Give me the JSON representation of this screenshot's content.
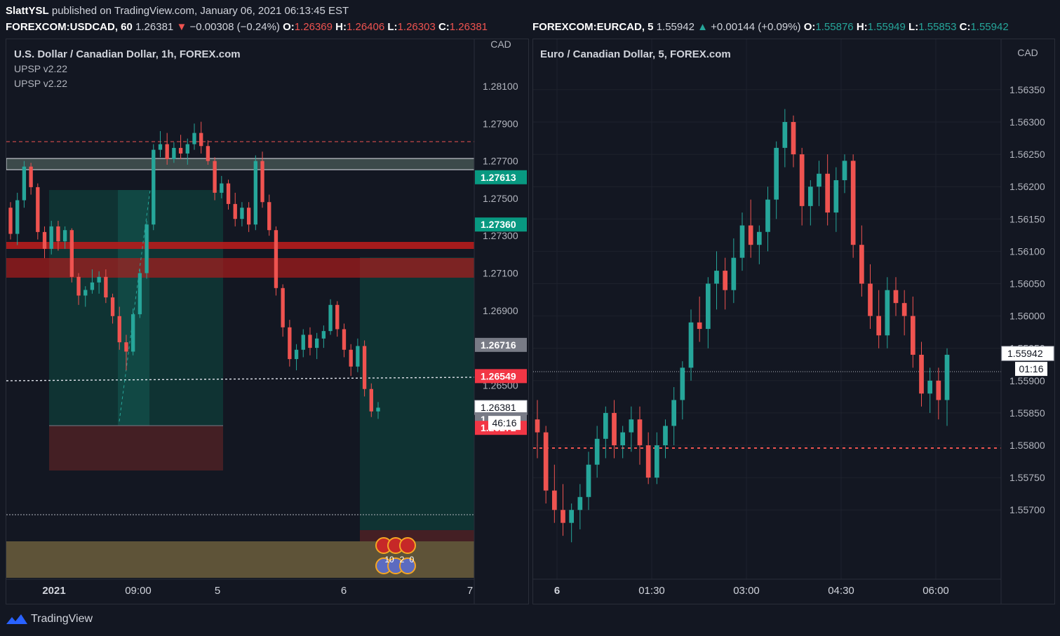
{
  "header": {
    "author": "SlattYSL",
    "published_text": "published on TradingView.com, January 06, 2021 06:13:45 EST"
  },
  "left_legend": {
    "symbol": "FOREXCOM:USDCAD, 60",
    "last": "1.26381",
    "arrow": "▼",
    "change": "−0.00308 (−0.24%)",
    "o_label": "O:",
    "o": "1.26369",
    "h_label": "H:",
    "h": "1.26406",
    "l_label": "L:",
    "l": "1.26303",
    "c_label": "C:",
    "c": "1.26381"
  },
  "right_legend": {
    "symbol": "FOREXCOM:EURCAD, 5",
    "last": "1.55942",
    "arrow": "▲",
    "change": "+0.00144 (+0.09%)",
    "o_label": "O:",
    "o": "1.55876",
    "h_label": "H:",
    "h": "1.55949",
    "l_label": "L:",
    "l": "1.55853",
    "c_label": "C:",
    "c": "1.55942"
  },
  "footer": {
    "brand": "TradingView",
    "icon": "tradingview-logo-icon"
  },
  "colors": {
    "up": "#26a69a",
    "down": "#ef5350",
    "bg": "#131722",
    "grid": "#1e222d",
    "text": "#d1d4dc"
  },
  "chart_data": [
    {
      "type": "candlestick",
      "title": "U.S. Dollar / Canadian Dollar, 1h, FOREX.com",
      "indicators": [
        "UPSP v2.22",
        "UPSP v2.22"
      ],
      "currency": "CAD",
      "x_ticks": [
        "2021",
        "09:00",
        "5",
        "6",
        "7"
      ],
      "y_ticks": [
        1.281,
        1.279,
        1.277,
        1.275,
        1.273,
        1.271,
        1.269,
        1.267,
        1.265
      ],
      "ylim": [
        1.2595,
        1.2822
      ],
      "grid": false,
      "price_labels": [
        {
          "price": 1.27613,
          "text": "1.27613",
          "color": "#089981"
        },
        {
          "price": 1.2736,
          "text": "1.27360",
          "color": "#089981"
        },
        {
          "price": 1.26716,
          "text": "1.26716",
          "color": "#787b86"
        },
        {
          "price": 1.26549,
          "text": "1.26549",
          "color": "#f23645"
        },
        {
          "price": 1.26381,
          "text": "1.26381",
          "color": "#ffffff"
        },
        {
          "price": 1.26318,
          "text": "1.26318",
          "color": "#787b86"
        },
        {
          "price": 1.26272,
          "text": "1.26272",
          "color": "#f23645"
        }
      ],
      "countdown": "46:16",
      "event_badges": [
        "10",
        "2",
        "0"
      ],
      "candles": [
        [
          1.2745,
          1.2748,
          1.2728,
          1.2731
        ],
        [
          1.2731,
          1.2753,
          1.2725,
          1.2749
        ],
        [
          1.2749,
          1.277,
          1.2745,
          1.2767
        ],
        [
          1.2767,
          1.2769,
          1.2752,
          1.2756
        ],
        [
          1.2756,
          1.2758,
          1.2728,
          1.2732
        ],
        [
          1.2732,
          1.2735,
          1.2718,
          1.2723
        ],
        [
          1.2723,
          1.2738,
          1.272,
          1.2735
        ],
        [
          1.2735,
          1.2738,
          1.2722,
          1.2727
        ],
        [
          1.2727,
          1.2735,
          1.2723,
          1.2733
        ],
        [
          1.2733,
          1.2734,
          1.2705,
          1.2708
        ],
        [
          1.2708,
          1.271,
          1.2693,
          1.2698
        ],
        [
          1.2698,
          1.2703,
          1.2692,
          1.2701
        ],
        [
          1.2701,
          1.2712,
          1.2699,
          1.2705
        ],
        [
          1.2705,
          1.2711,
          1.2699,
          1.2708
        ],
        [
          1.2708,
          1.2712,
          1.2694,
          1.2697
        ],
        [
          1.2697,
          1.2699,
          1.2683,
          1.2687
        ],
        [
          1.2687,
          1.2692,
          1.2669,
          1.2673
        ],
        [
          1.2673,
          1.2677,
          1.2658,
          1.2668
        ],
        [
          1.2668,
          1.2691,
          1.2666,
          1.2688
        ],
        [
          1.2688,
          1.2712,
          1.2686,
          1.271
        ],
        [
          1.271,
          1.2738,
          1.2707,
          1.2736
        ],
        [
          1.2736,
          1.2779,
          1.2733,
          1.2776
        ],
        [
          1.2776,
          1.2786,
          1.2772,
          1.2779
        ],
        [
          1.2779,
          1.2785,
          1.2768,
          1.2771
        ],
        [
          1.2771,
          1.278,
          1.2769,
          1.2777
        ],
        [
          1.2777,
          1.2784,
          1.2771,
          1.2774
        ],
        [
          1.2774,
          1.2782,
          1.2768,
          1.2779
        ],
        [
          1.2779,
          1.279,
          1.2776,
          1.2785
        ],
        [
          1.2785,
          1.2791,
          1.2774,
          1.2778
        ],
        [
          1.2778,
          1.2781,
          1.2768,
          1.277
        ],
        [
          1.277,
          1.2772,
          1.2749,
          1.2753
        ],
        [
          1.2753,
          1.2762,
          1.275,
          1.2758
        ],
        [
          1.2758,
          1.276,
          1.2744,
          1.2747
        ],
        [
          1.2747,
          1.2753,
          1.2735,
          1.2739
        ],
        [
          1.2739,
          1.2748,
          1.2735,
          1.2745
        ],
        [
          1.2745,
          1.2748,
          1.2732,
          1.2736
        ],
        [
          1.2736,
          1.2773,
          1.2733,
          1.277
        ],
        [
          1.277,
          1.2775,
          1.2745,
          1.2748
        ],
        [
          1.2748,
          1.2752,
          1.273,
          1.2733
        ],
        [
          1.2733,
          1.2735,
          1.2698,
          1.2702
        ],
        [
          1.2702,
          1.2704,
          1.2676,
          1.2681
        ],
        [
          1.2681,
          1.2685,
          1.266,
          1.2664
        ],
        [
          1.2664,
          1.2672,
          1.2658,
          1.2669
        ],
        [
          1.2669,
          1.268,
          1.2665,
          1.2677
        ],
        [
          1.2677,
          1.2681,
          1.2666,
          1.267
        ],
        [
          1.267,
          1.2678,
          1.2664,
          1.2675
        ],
        [
          1.2675,
          1.2682,
          1.267,
          1.2679
        ],
        [
          1.2679,
          1.2696,
          1.2677,
          1.2693
        ],
        [
          1.2693,
          1.2695,
          1.2676,
          1.268
        ],
        [
          1.268,
          1.2683,
          1.2665,
          1.2669
        ],
        [
          1.2669,
          1.2672,
          1.2655,
          1.266
        ],
        [
          1.266,
          1.2675,
          1.2657,
          1.2671
        ],
        [
          1.2671,
          1.2674,
          1.2644,
          1.2648
        ],
        [
          1.2648,
          1.2651,
          1.2633,
          1.2636
        ],
        [
          1.2636,
          1.2641,
          1.2632,
          1.2638
        ]
      ]
    },
    {
      "type": "candlestick",
      "title": "Euro / Canadian Dollar, 5, FOREX.com",
      "currency": "CAD",
      "x_ticks": [
        "6",
        "01:30",
        "03:00",
        "04:30",
        "06:00"
      ],
      "y_ticks": [
        1.5635,
        1.563,
        1.5625,
        1.562,
        1.5615,
        1.561,
        1.5605,
        1.56,
        1.5595,
        1.559,
        1.5585,
        1.558,
        1.5575,
        1.557
      ],
      "ylim": [
        1.5562,
        1.5639
      ],
      "grid": true,
      "price_labels": [
        {
          "price": 1.55942,
          "text": "1.55942",
          "color": "#ffffff"
        }
      ],
      "countdown": "01:16",
      "candles": [
        [
          1.5584,
          1.5587,
          1.5578,
          1.5582
        ],
        [
          1.5582,
          1.5583,
          1.5571,
          1.5573
        ],
        [
          1.5573,
          1.5577,
          1.5568,
          1.557
        ],
        [
          1.557,
          1.5574,
          1.5566,
          1.5568
        ],
        [
          1.5568,
          1.5571,
          1.5565,
          1.557
        ],
        [
          1.557,
          1.5574,
          1.5567,
          1.5572
        ],
        [
          1.5572,
          1.5579,
          1.557,
          1.5577
        ],
        [
          1.5577,
          1.5583,
          1.5575,
          1.5581
        ],
        [
          1.5581,
          1.5586,
          1.5578,
          1.5585
        ],
        [
          1.5585,
          1.5587,
          1.5578,
          1.558
        ],
        [
          1.558,
          1.5583,
          1.5578,
          1.5582
        ],
        [
          1.5582,
          1.5586,
          1.5579,
          1.5584
        ],
        [
          1.5584,
          1.5586,
          1.5577,
          1.558
        ],
        [
          1.558,
          1.5582,
          1.5574,
          1.5575
        ],
        [
          1.5575,
          1.5582,
          1.5574,
          1.558
        ],
        [
          1.558,
          1.5584,
          1.5578,
          1.5583
        ],
        [
          1.5583,
          1.5589,
          1.558,
          1.5587
        ],
        [
          1.5587,
          1.5593,
          1.5584,
          1.5592
        ],
        [
          1.5592,
          1.5601,
          1.559,
          1.5599
        ],
        [
          1.5599,
          1.5603,
          1.5596,
          1.5598
        ],
        [
          1.5598,
          1.5606,
          1.5595,
          1.5605
        ],
        [
          1.5605,
          1.561,
          1.5601,
          1.5607
        ],
        [
          1.5607,
          1.5609,
          1.5601,
          1.5604
        ],
        [
          1.5604,
          1.5612,
          1.5602,
          1.5609
        ],
        [
          1.5609,
          1.5616,
          1.5607,
          1.5614
        ],
        [
          1.5614,
          1.5618,
          1.5609,
          1.5611
        ],
        [
          1.5611,
          1.5614,
          1.5608,
          1.5613
        ],
        [
          1.5613,
          1.562,
          1.561,
          1.5618
        ],
        [
          1.5618,
          1.5627,
          1.5615,
          1.5626
        ],
        [
          1.5626,
          1.5632,
          1.5623,
          1.563
        ],
        [
          1.563,
          1.5631,
          1.5623,
          1.5625
        ],
        [
          1.5625,
          1.5626,
          1.5614,
          1.5617
        ],
        [
          1.5617,
          1.5621,
          1.5614,
          1.562
        ],
        [
          1.562,
          1.5624,
          1.5617,
          1.5622
        ],
        [
          1.5622,
          1.5625,
          1.5614,
          1.5616
        ],
        [
          1.5616,
          1.5623,
          1.5613,
          1.5621
        ],
        [
          1.5621,
          1.5625,
          1.5619,
          1.5624
        ],
        [
          1.5624,
          1.5625,
          1.5609,
          1.5611
        ],
        [
          1.5611,
          1.5614,
          1.5603,
          1.5605
        ],
        [
          1.5605,
          1.5608,
          1.5598,
          1.56
        ],
        [
          1.56,
          1.5604,
          1.5595,
          1.5597
        ],
        [
          1.5597,
          1.5606,
          1.5595,
          1.5604
        ],
        [
          1.5604,
          1.5606,
          1.56,
          1.5602
        ],
        [
          1.5602,
          1.5604,
          1.5597,
          1.56
        ],
        [
          1.56,
          1.5603,
          1.5592,
          1.5594
        ],
        [
          1.5594,
          1.5596,
          1.5586,
          1.5588
        ],
        [
          1.5588,
          1.5592,
          1.5585,
          1.559
        ],
        [
          1.559,
          1.5592,
          1.5584,
          1.5587
        ],
        [
          1.5587,
          1.5595,
          1.5583,
          1.5594
        ]
      ]
    }
  ]
}
